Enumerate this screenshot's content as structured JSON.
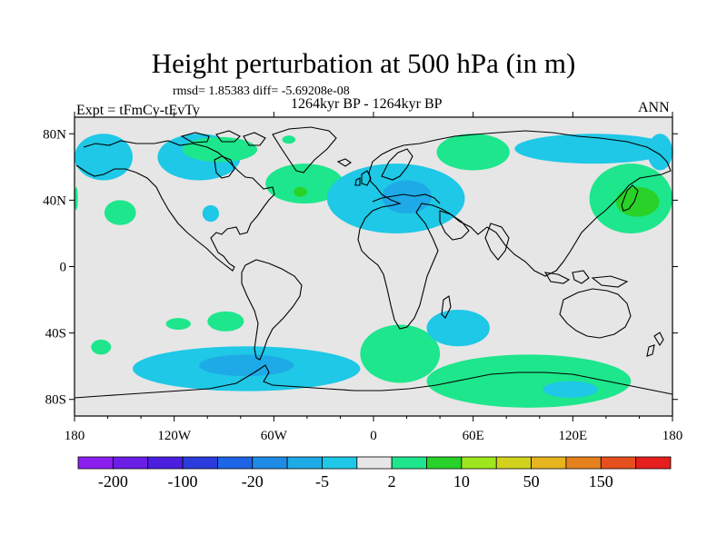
{
  "title": "Height perturbation at 500 hPa (in m)",
  "stats_line": "rmsd= 1.85383 diff= -5.69208e-08",
  "period": "1264kyr BP - 1264kyr BP",
  "experiment": "Expt = tFmCy-tEvTy",
  "season": "ANN",
  "chart_data": {
    "type": "heatmap",
    "projection": "cylindrical-equidistant",
    "xlim": [
      -180,
      180
    ],
    "ylim": [
      -90,
      90
    ],
    "x_ticks": [
      {
        "value": -180,
        "label": "180"
      },
      {
        "value": -120,
        "label": "120W"
      },
      {
        "value": -60,
        "label": "60W"
      },
      {
        "value": 0,
        "label": "0"
      },
      {
        "value": 60,
        "label": "60E"
      },
      {
        "value": 120,
        "label": "120E"
      },
      {
        "value": 180,
        "label": "180"
      }
    ],
    "y_ticks": [
      {
        "value": 80,
        "label": "80N"
      },
      {
        "value": 40,
        "label": "40N"
      },
      {
        "value": 0,
        "label": "0"
      },
      {
        "value": -40,
        "label": "40S"
      },
      {
        "value": -80,
        "label": "80S"
      }
    ],
    "colorbar": {
      "colors": [
        "#8c1ef0",
        "#6a1ee6",
        "#4b1ee0",
        "#2c3cdc",
        "#1e64e6",
        "#1e8ce6",
        "#1eaae6",
        "#1ec8e6",
        "#e6e6e6",
        "#1ee68c",
        "#28d228",
        "#a0e61e",
        "#d2d21e",
        "#e6b41e",
        "#e6821e",
        "#e6501e",
        "#e61e1e"
      ],
      "labels": [
        {
          "boundary": 1,
          "text": "-200"
        },
        {
          "boundary": 3,
          "text": "-100"
        },
        {
          "boundary": 5,
          "text": "-20"
        },
        {
          "boundary": 7,
          "text": "-5"
        },
        {
          "boundary": 9,
          "text": "2"
        },
        {
          "boundary": 11,
          "text": "10"
        },
        {
          "boundary": 13,
          "text": "50"
        },
        {
          "boundary": 15,
          "text": "150"
        }
      ]
    },
    "anomalies": [
      {
        "name": "north-pacific-negative",
        "sign": "negative",
        "level": "-5 to -2",
        "lon": [
          -180,
          -145
        ],
        "lat": [
          52,
          80
        ]
      },
      {
        "name": "north-pacific-negative-east",
        "sign": "negative",
        "level": "-5 to -2",
        "lon": [
          165,
          180
        ],
        "lat": [
          58,
          80
        ]
      },
      {
        "name": "north-america-arctic-negative",
        "sign": "negative",
        "level": "-5 to -2",
        "lon": [
          -130,
          -80
        ],
        "lat": [
          52,
          80
        ]
      },
      {
        "name": "canada-arctic-positive",
        "sign": "positive",
        "level": "2 to 10",
        "lon": [
          -115,
          -70
        ],
        "lat": [
          63,
          78
        ]
      },
      {
        "name": "greenland-positive",
        "sign": "positive",
        "level": "2 to 10",
        "lon": [
          -55,
          -47
        ],
        "lat": [
          74,
          79
        ]
      },
      {
        "name": "west-pacific-positive",
        "sign": "positive",
        "level": "2 to 10",
        "lon": [
          -180,
          -178
        ],
        "lat": [
          34,
          48
        ]
      },
      {
        "name": "east-pacific-positive",
        "sign": "positive",
        "level": "2 to 10",
        "lon": [
          -162,
          -143
        ],
        "lat": [
          25,
          40
        ]
      },
      {
        "name": "florida-negative",
        "sign": "negative",
        "level": "-5 to -2",
        "lon": [
          -103,
          -93
        ],
        "lat": [
          27,
          37
        ]
      },
      {
        "name": "north-atlantic-positive",
        "sign": "positive",
        "level": "2 to 10",
        "lon": [
          -65,
          -18
        ],
        "lat": [
          38,
          62
        ]
      },
      {
        "name": "north-atlantic-positive-core",
        "sign": "positive",
        "level": "10 to 20",
        "lon": [
          -48,
          -40
        ],
        "lat": [
          42,
          48
        ]
      },
      {
        "name": "europe-mediterranean-negative",
        "sign": "negative",
        "level": "-5 to -2",
        "lon": [
          -28,
          55
        ],
        "lat": [
          20,
          62
        ]
      },
      {
        "name": "mediterranean-negative-core",
        "sign": "negative",
        "level": "-20 to -5",
        "lon": [
          5,
          35
        ],
        "lat": [
          32,
          52
        ]
      },
      {
        "name": "siberia-positive",
        "sign": "positive",
        "level": "2 to 10",
        "lon": [
          38,
          82
        ],
        "lat": [
          58,
          80
        ]
      },
      {
        "name": "east-asia-arctic-negative",
        "sign": "negative",
        "level": "-5 to -2",
        "lon": [
          85,
          180
        ],
        "lat": [
          62,
          80
        ]
      },
      {
        "name": "japan-positive",
        "sign": "positive",
        "level": "2 to 10",
        "lon": [
          130,
          180
        ],
        "lat": [
          20,
          62
        ]
      },
      {
        "name": "japan-positive-core",
        "sign": "positive",
        "level": "10 to 20",
        "lon": [
          146,
          172
        ],
        "lat": [
          30,
          48
        ]
      },
      {
        "name": "south-pacific-positive",
        "sign": "positive",
        "level": "2 to 10",
        "lon": [
          -125,
          -110
        ],
        "lat": [
          -38,
          -31
        ]
      },
      {
        "name": "south-pacific-positive-east",
        "sign": "positive",
        "level": "2 to 10",
        "lon": [
          -100,
          -78
        ],
        "lat": [
          -39,
          -27
        ]
      },
      {
        "name": "southeast-pacific-negative",
        "sign": "negative",
        "level": "-5 to -2",
        "lon": [
          -145,
          -8
        ],
        "lat": [
          -75,
          -48
        ]
      },
      {
        "name": "drake-passage-negative-core",
        "sign": "negative",
        "level": "-20 to -5",
        "lon": [
          -105,
          -48
        ],
        "lat": [
          -66,
          -53
        ]
      },
      {
        "name": "south-indian-ocean-positive",
        "sign": "positive",
        "level": "2 to 10",
        "lon": [
          -8,
          40
        ],
        "lat": [
          -70,
          -35
        ]
      },
      {
        "name": "south-africa-negative",
        "sign": "negative",
        "level": "-5 to -2",
        "lon": [
          32,
          70
        ],
        "lat": [
          -48,
          -26
        ]
      },
      {
        "name": "southern-ocean-positive",
        "sign": "positive",
        "level": "2 to 10",
        "lon": [
          32,
          155
        ],
        "lat": [
          -85,
          -53
        ]
      },
      {
        "name": "south-australia-negative",
        "sign": "negative",
        "level": "-5 to -2",
        "lon": [
          102,
          135
        ],
        "lat": [
          -79,
          -69
        ]
      },
      {
        "name": "south-pacific-small-positive",
        "sign": "positive",
        "level": "2 to 10",
        "lon": [
          -170,
          -158
        ],
        "lat": [
          -53,
          -44
        ]
      }
    ]
  }
}
